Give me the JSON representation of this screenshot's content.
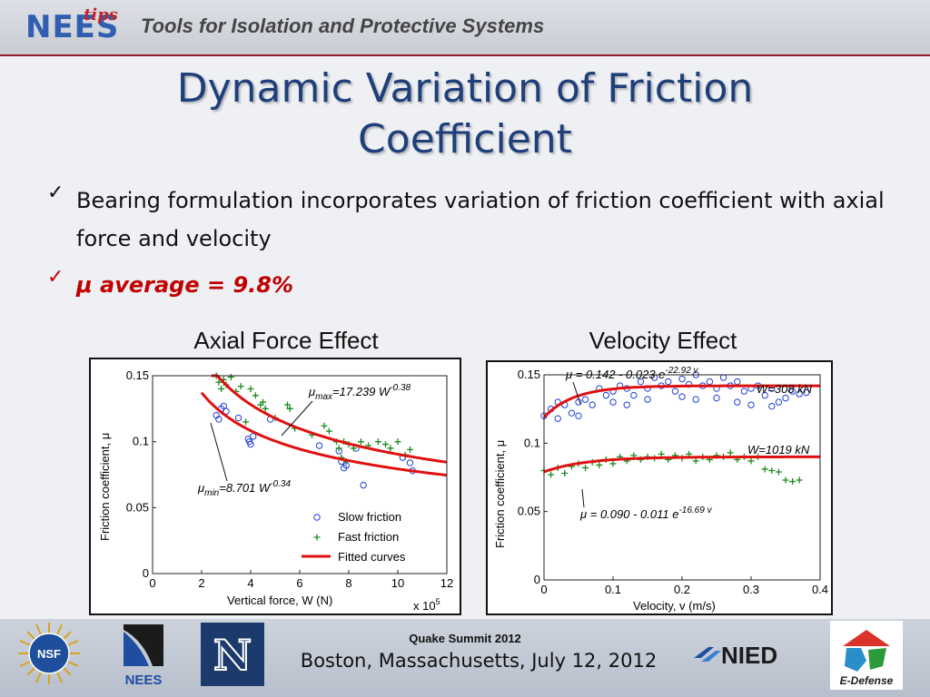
{
  "header": {
    "logo_main": "NEES",
    "logo_sub": "tips",
    "title": "Tools for Isolation and Protective Systems"
  },
  "slide": {
    "title_line1": "Dynamic Variation of Friction",
    "title_line2": "Coefficient",
    "bullets": [
      {
        "check": "✓",
        "text": "Bearing formulation incorporates variation of friction coefficient with axial force and velocity"
      },
      {
        "check": "✓",
        "text": "μ average = 9.8%"
      }
    ]
  },
  "colors": {
    "slow": "#1f3fd6",
    "fast": "#1a8a1a",
    "fit": "#e01010",
    "title": "#1f3f7a",
    "accent_red": "#c00000"
  },
  "chart_data": [
    {
      "type": "scatter",
      "heading": "Axial Force Effect",
      "xlabel": "Vertical force, W (N)",
      "ylabel": "Friction coefficient,  μ",
      "x_multiplier": "x 10",
      "x_multiplier_exp": "5",
      "xlim": [
        0,
        12
      ],
      "ylim": [
        0,
        0.15
      ],
      "xticks": [
        "0",
        "2",
        "4",
        "6",
        "8",
        "10",
        "12"
      ],
      "yticks": [
        "0",
        "0.05",
        "0.1",
        "0.15"
      ],
      "legend": [
        "Slow friction",
        "Fast friction",
        "Fitted curves"
      ],
      "legend_position": "bottom-right",
      "legend_symbols": [
        "○",
        "+"
      ],
      "annotations": [
        {
          "prefix": "μ",
          "sub": "max",
          "eq": "=17.239 W",
          "sup": "-0.38"
        },
        {
          "prefix": "μ",
          "sub": "min",
          "eq": "=8.701 W",
          "sup": "-0.34"
        }
      ],
      "fits": [
        {
          "name": "max",
          "coef": 17.239,
          "exp": -0.38
        },
        {
          "name": "min",
          "coef": 8.701,
          "exp": -0.34
        }
      ],
      "slow_points": [
        [
          2.6,
          0.12
        ],
        [
          2.7,
          0.117
        ],
        [
          2.8,
          0.125
        ],
        [
          2.9,
          0.127
        ],
        [
          3.0,
          0.123
        ],
        [
          3.5,
          0.118
        ],
        [
          3.9,
          0.102
        ],
        [
          4.0,
          0.098
        ],
        [
          4.1,
          0.104
        ],
        [
          3.95,
          0.1
        ],
        [
          4.8,
          0.117
        ],
        [
          6.8,
          0.097
        ],
        [
          7.6,
          0.093
        ],
        [
          7.7,
          0.085
        ],
        [
          7.8,
          0.08
        ],
        [
          7.9,
          0.082
        ],
        [
          8.3,
          0.095
        ],
        [
          8.6,
          0.067
        ],
        [
          10.2,
          0.088
        ],
        [
          10.5,
          0.084
        ],
        [
          10.6,
          0.078
        ]
      ],
      "fast_points": [
        [
          2.6,
          0.15
        ],
        [
          2.7,
          0.145
        ],
        [
          2.8,
          0.14
        ],
        [
          2.9,
          0.147
        ],
        [
          3.0,
          0.143
        ],
        [
          3.2,
          0.149
        ],
        [
          3.4,
          0.138
        ],
        [
          3.6,
          0.142
        ],
        [
          4.0,
          0.14
        ],
        [
          4.2,
          0.135
        ],
        [
          4.4,
          0.128
        ],
        [
          4.6,
          0.125
        ],
        [
          4.5,
          0.13
        ],
        [
          5.0,
          0.118
        ],
        [
          5.6,
          0.125
        ],
        [
          5.5,
          0.128
        ],
        [
          6.5,
          0.105
        ],
        [
          7.0,
          0.112
        ],
        [
          7.2,
          0.108
        ],
        [
          7.5,
          0.1
        ],
        [
          7.6,
          0.095
        ],
        [
          7.8,
          0.1
        ],
        [
          8.0,
          0.098
        ],
        [
          8.2,
          0.095
        ],
        [
          8.5,
          0.1
        ],
        [
          8.8,
          0.097
        ],
        [
          9.2,
          0.1
        ],
        [
          9.5,
          0.098
        ],
        [
          9.7,
          0.095
        ],
        [
          10.0,
          0.1
        ],
        [
          10.3,
          0.09
        ],
        [
          10.5,
          0.094
        ],
        [
          7.7,
          0.088
        ],
        [
          7.9,
          0.085
        ],
        [
          5.8,
          0.11
        ],
        [
          3.8,
          0.115
        ]
      ]
    },
    {
      "type": "scatter",
      "heading": "Velocity Effect",
      "xlabel": "Velocity, v (m/s)",
      "ylabel": "Friction coefficient,  μ",
      "xlim": [
        0,
        0.4
      ],
      "ylim": [
        0,
        0.15
      ],
      "xticks": [
        "0",
        "0.1",
        "0.2",
        "0.3",
        "0.4"
      ],
      "yticks": [
        "0",
        "0.05",
        "0.1",
        "0.15"
      ],
      "annotations": [
        {
          "prefix": "μ",
          "eq": " = 0.142 - 0.023 e",
          "sup": "-22.92 v"
        },
        {
          "prefix": "μ",
          "eq": " = 0.090 - 0.011 e",
          "sup": "-16.69 v"
        },
        {
          "text": "W=308 kN"
        },
        {
          "text": "W=1019 kN"
        }
      ],
      "fits": [
        {
          "name": "W=308 kN",
          "a": 0.142,
          "b": 0.023,
          "c": 22.92
        },
        {
          "name": "W=1019 kN",
          "a": 0.09,
          "b": 0.011,
          "c": 16.69
        }
      ],
      "slow_points": [
        [
          0.0,
          0.12
        ],
        [
          0.01,
          0.125
        ],
        [
          0.02,
          0.118
        ],
        [
          0.03,
          0.128
        ],
        [
          0.04,
          0.122
        ],
        [
          0.05,
          0.13
        ],
        [
          0.06,
          0.132
        ],
        [
          0.07,
          0.128
        ],
        [
          0.08,
          0.14
        ],
        [
          0.09,
          0.135
        ],
        [
          0.1,
          0.138
        ],
        [
          0.11,
          0.142
        ],
        [
          0.12,
          0.14
        ],
        [
          0.13,
          0.135
        ],
        [
          0.14,
          0.145
        ],
        [
          0.15,
          0.14
        ],
        [
          0.16,
          0.148
        ],
        [
          0.17,
          0.142
        ],
        [
          0.18,
          0.145
        ],
        [
          0.19,
          0.138
        ],
        [
          0.2,
          0.147
        ],
        [
          0.21,
          0.143
        ],
        [
          0.22,
          0.15
        ],
        [
          0.23,
          0.142
        ],
        [
          0.24,
          0.145
        ],
        [
          0.25,
          0.14
        ],
        [
          0.26,
          0.148
        ],
        [
          0.27,
          0.142
        ],
        [
          0.28,
          0.145
        ],
        [
          0.29,
          0.138
        ],
        [
          0.3,
          0.14
        ],
        [
          0.31,
          0.142
        ],
        [
          0.32,
          0.135
        ],
        [
          0.33,
          0.14
        ],
        [
          0.34,
          0.13
        ],
        [
          0.35,
          0.133
        ],
        [
          0.36,
          0.138
        ],
        [
          0.37,
          0.136
        ],
        [
          0.38,
          0.137
        ],
        [
          0.1,
          0.13
        ],
        [
          0.15,
          0.132
        ],
        [
          0.2,
          0.134
        ],
        [
          0.25,
          0.133
        ],
        [
          0.3,
          0.128
        ],
        [
          0.05,
          0.12
        ],
        [
          0.02,
          0.13
        ],
        [
          0.12,
          0.128
        ],
        [
          0.22,
          0.132
        ],
        [
          0.28,
          0.13
        ],
        [
          0.33,
          0.127
        ]
      ],
      "fast_points": [
        [
          0.0,
          0.08
        ],
        [
          0.01,
          0.077
        ],
        [
          0.02,
          0.082
        ],
        [
          0.03,
          0.078
        ],
        [
          0.04,
          0.083
        ],
        [
          0.05,
          0.085
        ],
        [
          0.06,
          0.082
        ],
        [
          0.07,
          0.086
        ],
        [
          0.08,
          0.084
        ],
        [
          0.09,
          0.088
        ],
        [
          0.1,
          0.085
        ],
        [
          0.11,
          0.09
        ],
        [
          0.12,
          0.087
        ],
        [
          0.13,
          0.091
        ],
        [
          0.14,
          0.088
        ],
        [
          0.15,
          0.09
        ],
        [
          0.16,
          0.089
        ],
        [
          0.17,
          0.092
        ],
        [
          0.18,
          0.088
        ],
        [
          0.19,
          0.091
        ],
        [
          0.2,
          0.089
        ],
        [
          0.21,
          0.092
        ],
        [
          0.22,
          0.087
        ],
        [
          0.23,
          0.09
        ],
        [
          0.24,
          0.088
        ],
        [
          0.25,
          0.091
        ],
        [
          0.26,
          0.09
        ],
        [
          0.27,
          0.093
        ],
        [
          0.28,
          0.088
        ],
        [
          0.29,
          0.09
        ],
        [
          0.3,
          0.087
        ],
        [
          0.31,
          0.09
        ],
        [
          0.32,
          0.081
        ],
        [
          0.33,
          0.08
        ],
        [
          0.34,
          0.079
        ],
        [
          0.35,
          0.073
        ],
        [
          0.36,
          0.072
        ],
        [
          0.37,
          0.073
        ]
      ]
    }
  ],
  "footer": {
    "event": "Quake Summit 2012",
    "place": "Boston, Massachusetts, July 12, 2012",
    "logos": {
      "nsf": "NSF",
      "nees": "NEES",
      "nevada": "N",
      "nied": "NIED",
      "edefense": "E-Defense"
    }
  }
}
